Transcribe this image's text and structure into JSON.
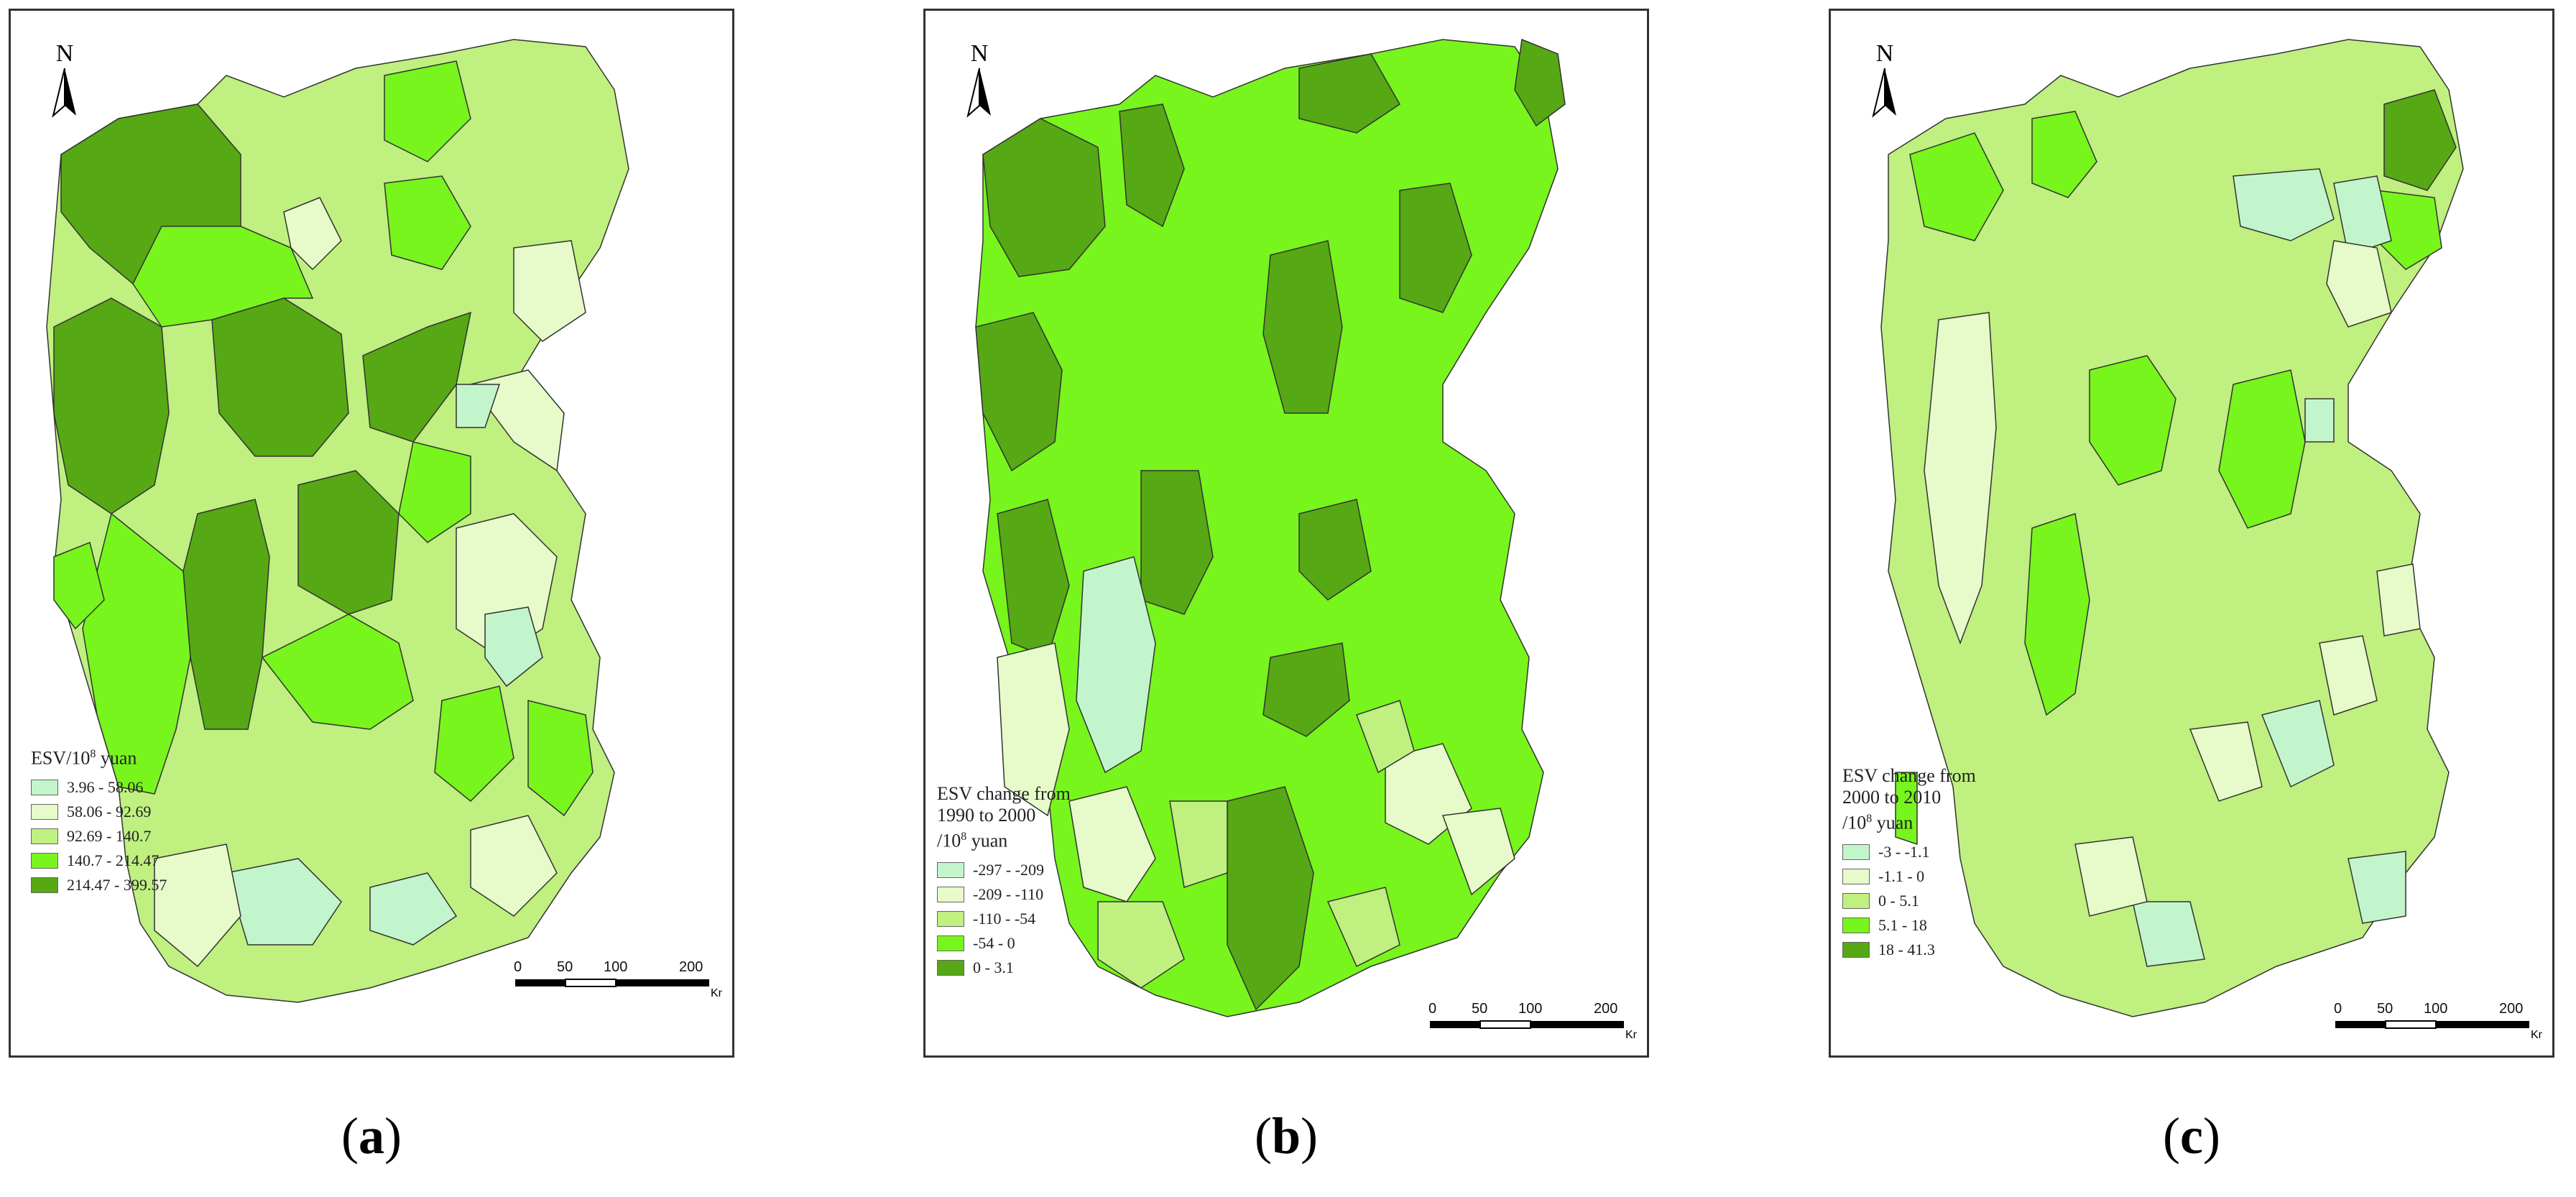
{
  "colors": {
    "class1": "#c3f5cc",
    "class2": "#e6fbc9",
    "class3": "#bff080",
    "class4": "#77f51c",
    "class5": "#56a814",
    "outline": "#333333"
  },
  "north_label": "N",
  "panels": [
    {
      "id": "a",
      "caption_letter": "a",
      "legend": {
        "title_prefix": "ESV/10",
        "title_sup": "8",
        "title_suffix": " yuan",
        "title_lines": [],
        "items": [
          "3.96 - 58.06",
          "58.06 - 92.69",
          "92.69 - 140.7",
          "140.7 - 214.47",
          "214.47 - 399.57"
        ]
      },
      "scale": {
        "labels": [
          "0",
          "50",
          "100",
          "200"
        ],
        "unit": "Km"
      }
    },
    {
      "id": "b",
      "caption_letter": "b",
      "legend": {
        "title_prefix": "",
        "title_sup": "8",
        "title_suffix": " yuan",
        "title_lines": [
          "ESV change from",
          "1990 to 2000",
          "/10"
        ],
        "items": [
          "-297 - -209",
          "-209 - -110",
          "-110 - -54",
          "-54 - 0",
          "0 - 3.1"
        ]
      },
      "scale": {
        "labels": [
          "0",
          "50",
          "100",
          "200"
        ],
        "unit": "Km"
      }
    },
    {
      "id": "c",
      "caption_letter": "c",
      "legend": {
        "title_prefix": "",
        "title_sup": "8",
        "title_suffix": " yuan",
        "title_lines": [
          "ESV change from",
          "2000 to 2010",
          "/10"
        ],
        "items": [
          "-3 - -1.1",
          "-1.1 - 0",
          "0 - 5.1",
          "5.1 - 18",
          "18 - 41.3"
        ]
      },
      "scale": {
        "labels": [
          "0",
          "50",
          "100",
          "200"
        ],
        "unit": "Km"
      }
    }
  ]
}
